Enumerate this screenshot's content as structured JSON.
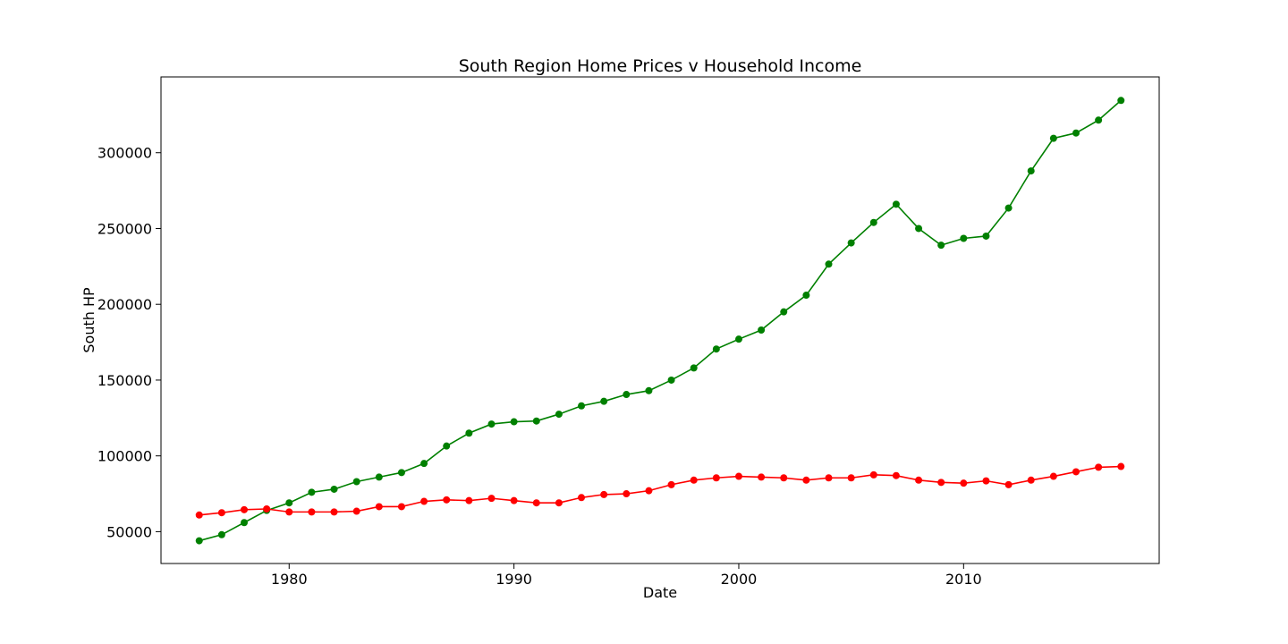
{
  "chart_data": {
    "type": "line",
    "title": "South Region Home Prices v Household Income",
    "xlabel": "Date",
    "ylabel": "South HP",
    "xlim": [
      1974.3,
      2018.7
    ],
    "ylim": [
      29000,
      350000
    ],
    "xticks": [
      1980,
      1990,
      2000,
      2010
    ],
    "yticks": [
      50000,
      100000,
      150000,
      200000,
      250000,
      300000
    ],
    "grid": false,
    "x": [
      1976,
      1977,
      1978,
      1979,
      1980,
      1981,
      1982,
      1983,
      1984,
      1985,
      1986,
      1987,
      1988,
      1989,
      1990,
      1991,
      1992,
      1993,
      1994,
      1995,
      1996,
      1997,
      1998,
      1999,
      2000,
      2001,
      2002,
      2003,
      2004,
      2005,
      2006,
      2007,
      2008,
      2009,
      2010,
      2011,
      2012,
      2013,
      2014,
      2015,
      2016,
      2017
    ],
    "series": [
      {
        "color": "#008000",
        "values": [
          44000,
          48000,
          56000,
          64000,
          69000,
          76000,
          78000,
          83000,
          86000,
          89000,
          95000,
          106500,
          115000,
          121000,
          122500,
          123000,
          127500,
          133000,
          136000,
          140500,
          143000,
          150000,
          158000,
          170500,
          177000,
          183000,
          195000,
          206000,
          226500,
          240500,
          254000,
          266000,
          250000,
          239000,
          243500,
          245000,
          263500,
          288000,
          309500,
          313000,
          321500,
          334500
        ]
      },
      {
        "color": "#ff0000",
        "values": [
          61000,
          62500,
          64500,
          65000,
          63000,
          63000,
          63000,
          63500,
          66500,
          66500,
          70000,
          71000,
          70500,
          72000,
          70500,
          69000,
          69000,
          72500,
          74500,
          75000,
          77000,
          81000,
          84000,
          85500,
          86500,
          86000,
          85500,
          84000,
          85500,
          85500,
          87500,
          87000,
          84000,
          82500,
          82000,
          83500,
          81000,
          84000,
          86500,
          89500,
          92500,
          93000
        ]
      }
    ]
  }
}
